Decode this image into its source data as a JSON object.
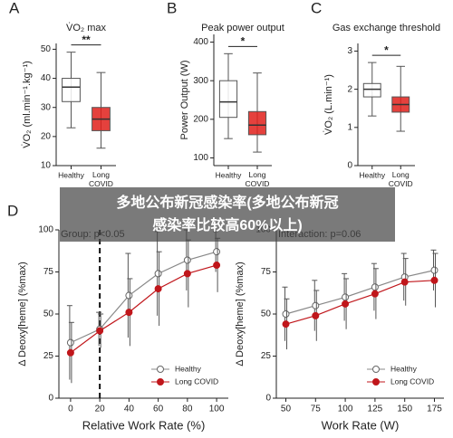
{
  "chart_data": [
    {
      "type": "box",
      "panel": "A",
      "title": "V̇O₂ max",
      "ylabel": "V̇O₂ (ml.min⁻¹.kg⁻¹)",
      "categories": [
        "Healthy",
        "Long COVID"
      ],
      "colors": [
        "#ffffff",
        "#e0201b"
      ],
      "boxes": [
        {
          "min": 23,
          "q1": 32,
          "median": 37,
          "q3": 40,
          "max": 49
        },
        {
          "min": 16,
          "q1": 22,
          "median": 26,
          "q3": 30,
          "max": 42
        }
      ],
      "significance": "**",
      "ylim": [
        10,
        52
      ],
      "yticks": [
        10,
        20,
        30,
        40,
        50
      ]
    },
    {
      "type": "box",
      "panel": "B",
      "title": "Peak power output",
      "ylabel": "Power Output (W)",
      "categories": [
        "Healthy",
        "Long COVID"
      ],
      "colors": [
        "#ffffff",
        "#e0201b"
      ],
      "boxes": [
        {
          "min": 150,
          "q1": 205,
          "median": 245,
          "q3": 300,
          "max": 370
        },
        {
          "min": 115,
          "q1": 160,
          "median": 185,
          "q3": 220,
          "max": 320
        }
      ],
      "significance": "*",
      "ylim": [
        80,
        420
      ],
      "yticks": [
        100,
        200,
        300,
        400
      ]
    },
    {
      "type": "box",
      "panel": "C",
      "title": "Gas exchange threshold",
      "ylabel": "V̇O₂ (L.min⁻¹)",
      "categories": [
        "Healthy",
        "Long COVID"
      ],
      "colors": [
        "#ffffff",
        "#e0201b"
      ],
      "boxes": [
        {
          "min": 1.3,
          "q1": 1.8,
          "median": 2.0,
          "q3": 2.15,
          "max": 2.7
        },
        {
          "min": 0.9,
          "q1": 1.4,
          "median": 1.6,
          "q3": 1.8,
          "max": 2.6
        }
      ],
      "significance": "*",
      "ylim": [
        0,
        3.2
      ],
      "yticks": [
        0,
        1,
        2,
        3
      ]
    },
    {
      "type": "line",
      "panel": "D",
      "annotation": "Group: p<0.05",
      "xlabel": "Relative Work Rate (%)",
      "ylabel": "Δ Deoxy[heme] (%max)",
      "x": [
        0,
        20,
        40,
        60,
        80,
        100
      ],
      "vline": 20,
      "legend": "lower right",
      "series": [
        {
          "name": "Healthy",
          "color": "#888888",
          "values": [
            33,
            41,
            61,
            74,
            82,
            87
          ],
          "errors": [
            22,
            10,
            25,
            25,
            18,
            12
          ]
        },
        {
          "name": "Long COVID",
          "color": "#c0161b",
          "values": [
            27,
            40,
            51,
            65,
            74,
            79
          ],
          "errors": [
            18,
            10,
            20,
            22,
            20,
            16
          ]
        }
      ],
      "xlim": [
        -8,
        108
      ],
      "ylim": [
        0,
        100
      ],
      "xticks": [
        0,
        20,
        40,
        60,
        80,
        100
      ],
      "yticks": [
        0,
        25,
        50,
        75,
        100
      ]
    },
    {
      "type": "line",
      "annotation": "Interaction: p=0.06",
      "xlabel": "Work Rate (W)",
      "ylabel": "Δ Deoxy[heme] (%max)",
      "x": [
        50,
        75,
        100,
        125,
        150,
        175
      ],
      "legend": "lower right",
      "series": [
        {
          "name": "Healthy",
          "color": "#888888",
          "values": [
            50,
            55,
            60,
            66,
            72,
            76
          ],
          "errors": [
            16,
            15,
            14,
            14,
            14,
            12
          ]
        },
        {
          "name": "Long COVID",
          "color": "#c0161b",
          "values": [
            44,
            49,
            56,
            62,
            69,
            70
          ],
          "errors": [
            15,
            15,
            15,
            15,
            14,
            16
          ]
        }
      ],
      "xlim": [
        42,
        183
      ],
      "ylim": [
        0,
        100
      ],
      "xticks": [
        50,
        75,
        100,
        125,
        150,
        175
      ],
      "yticks": [
        0,
        25,
        50,
        75,
        100
      ]
    }
  ],
  "caption_lines": [
    "多地公布新冠感染率(多地公布新冠",
    "感染率比较高60%以上)"
  ]
}
